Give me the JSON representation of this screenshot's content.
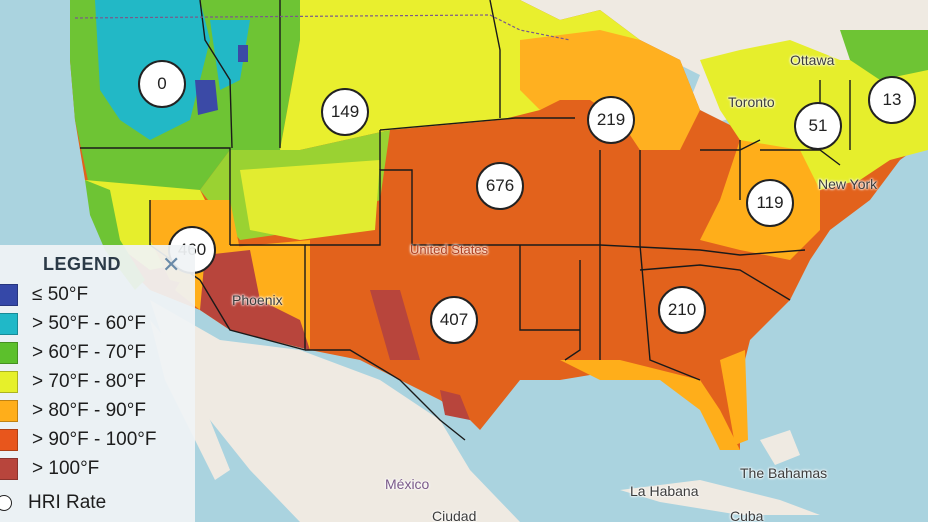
{
  "legend": {
    "title": "LEGEND",
    "close_glyph": "✕",
    "items": [
      {
        "label": "≤ 50°F",
        "color": "#3548a8"
      },
      {
        "label": "> 50°F - 60°F",
        "color": "#20b8c8"
      },
      {
        "label": "> 60°F - 70°F",
        "color": "#5cc02c"
      },
      {
        "label": "> 70°F - 80°F",
        "color": "#e6f02a"
      },
      {
        "label": "> 80°F - 90°F",
        "color": "#ffae1a"
      },
      {
        "label": "> 90°F - 100°F",
        "color": "#e8561c"
      },
      {
        "label": "> 100°F",
        "color": "#b8453c"
      }
    ],
    "hri_label": "HRI Rate"
  },
  "clusters": [
    {
      "value": "0"
    },
    {
      "value": "149"
    },
    {
      "value": "219"
    },
    {
      "value": "51"
    },
    {
      "value": "13"
    },
    {
      "value": "676"
    },
    {
      "value": "119"
    },
    {
      "value": "460"
    },
    {
      "value": "407"
    },
    {
      "value": "210"
    }
  ],
  "places": {
    "ottawa": "Ottawa",
    "toronto": "Toronto",
    "new_york": "New York",
    "phoenix": "Phoenix",
    "united_states": "United States",
    "the_bahamas": "The Bahamas",
    "mexico": "México",
    "la_habana": "La Habana",
    "ciudad": "Ciudad",
    "cuba": "Cuba"
  }
}
